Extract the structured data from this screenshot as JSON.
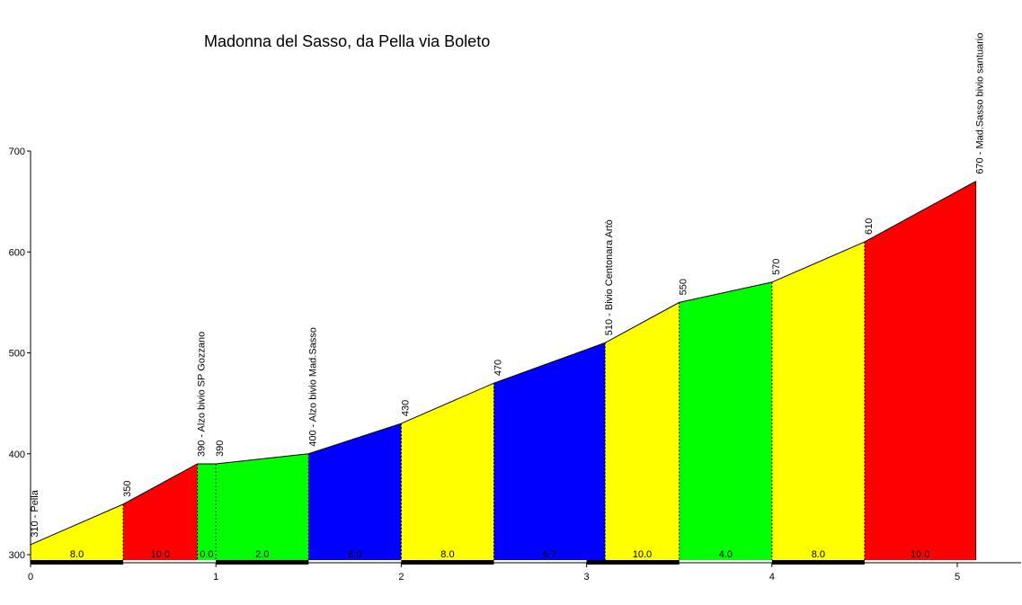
{
  "chart_data": {
    "type": "area",
    "title": "Madonna  del Sasso, da Pella via Boleto",
    "xlabel": "",
    "ylabel": "",
    "xlim": [
      0,
      5.35
    ],
    "ylim": [
      300,
      700
    ],
    "x_ticks": [
      "0",
      "1",
      "2",
      "3",
      "4",
      "5"
    ],
    "y_ticks": [
      "300",
      "400",
      "500",
      "600",
      "700"
    ],
    "grid": false,
    "profile_points": [
      {
        "x": 0.0,
        "y": 310,
        "label": "310 - Pella"
      },
      {
        "x": 0.5,
        "y": 350,
        "label": "350"
      },
      {
        "x": 0.9,
        "y": 390,
        "label": "390 - Alzo bivio SP Gozzano"
      },
      {
        "x": 1.0,
        "y": 390,
        "label": "390"
      },
      {
        "x": 1.5,
        "y": 400,
        "label": "400 - Alzo bivio Mad.Sasso"
      },
      {
        "x": 2.0,
        "y": 430,
        "label": "430"
      },
      {
        "x": 2.5,
        "y": 470,
        "label": "470"
      },
      {
        "x": 3.1,
        "y": 510,
        "label": "510 - Bivio Centonara Artò"
      },
      {
        "x": 3.5,
        "y": 550,
        "label": "550"
      },
      {
        "x": 4.0,
        "y": 570,
        "label": "570"
      },
      {
        "x": 4.5,
        "y": 610,
        "label": "610"
      },
      {
        "x": 5.1,
        "y": 670,
        "label": "670 - Mad.Sasso bivio santuario"
      }
    ],
    "segments": [
      {
        "gradient": "8.0",
        "color": "#ffff00"
      },
      {
        "gradient": "10.0",
        "color": "#ff0000"
      },
      {
        "gradient": "0.0",
        "color": "#00ff00"
      },
      {
        "gradient": "2.0",
        "color": "#00ff00"
      },
      {
        "gradient": "6.0",
        "color": "#0000ff"
      },
      {
        "gradient": "8.0",
        "color": "#ffff00"
      },
      {
        "gradient": "6.7",
        "color": "#0000ff"
      },
      {
        "gradient": "10.0",
        "color": "#ffff00"
      },
      {
        "gradient": "4.0",
        "color": "#00ff00"
      },
      {
        "gradient": "8.0",
        "color": "#ffff00"
      },
      {
        "gradient": "10.0",
        "color": "#ff0000"
      }
    ]
  }
}
